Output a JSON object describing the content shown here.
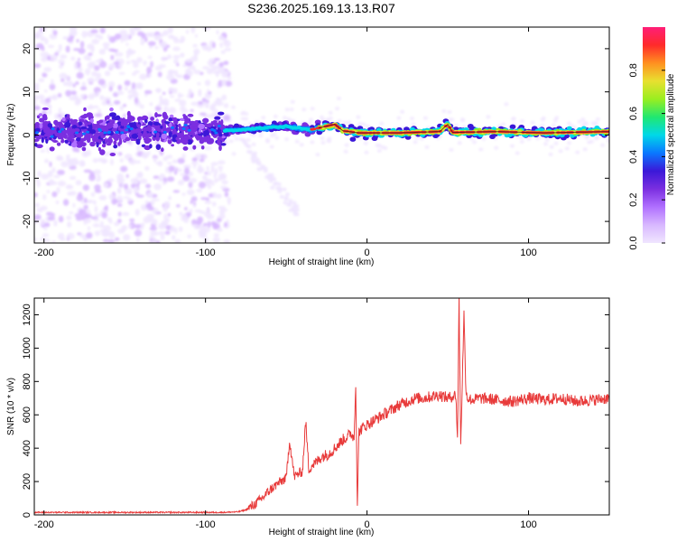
{
  "title": "S236.2025.169.13.13.R07",
  "colors": {
    "trace": "#e83a3a",
    "scatter": "#7b2fe0",
    "colormap": [
      "#f0e6ff",
      "#d8b8ff",
      "#b070ff",
      "#7b2fe0",
      "#3b18d8",
      "#0a78ff",
      "#00d8e8",
      "#20e870",
      "#9aee20",
      "#e8e030",
      "#ff9020",
      "#ff2a2a",
      "#ff1e78"
    ]
  },
  "chart_data": [
    {
      "id": "spectrogram",
      "type": "heatmap",
      "title": "S236.2025.169.13.13.R07",
      "xlabel": "Height of straight line (km)",
      "ylabel": "Frequency (Hz)",
      "xlim": [
        -206,
        150
      ],
      "ylim": [
        -25,
        25
      ],
      "xticks": [
        -200,
        -100,
        0,
        100
      ],
      "yticks": [
        -20,
        -10,
        0,
        10,
        20
      ],
      "colorbar": {
        "label": "Normalized spectral amplitude",
        "range": [
          0,
          1
        ],
        "ticks": [
          "0.0",
          "0.2",
          "0.4",
          "0.6",
          "0.8"
        ]
      },
      "regions": [
        {
          "x_range": [
            -206,
            -88
          ],
          "freq_center": 1,
          "freq_spread": 25,
          "amplitude": 0.05,
          "description_none": true
        },
        {
          "x_range": [
            -206,
            -88
          ],
          "freq_center": 1,
          "freq_spread": 5,
          "amplitude": 0.15
        },
        {
          "x_range": [
            -88,
            -30
          ],
          "freq_center": 2,
          "freq_spread": 3,
          "amplitude": 0.5
        },
        {
          "x_range": [
            -30,
            150
          ],
          "freq_center": 0.5,
          "freq_spread": 2,
          "amplitude": 0.9
        }
      ],
      "ridge": [
        [
          -88,
          1
        ],
        [
          -70,
          1.5
        ],
        [
          -50,
          2
        ],
        [
          -35,
          1.2
        ],
        [
          -20,
          2.5
        ],
        [
          -15,
          1
        ],
        [
          -5,
          0.5
        ],
        [
          20,
          0.5
        ],
        [
          45,
          0.8
        ],
        [
          50,
          2.5
        ],
        [
          53,
          0.6
        ],
        [
          80,
          0.8
        ],
        [
          110,
          0.5
        ],
        [
          150,
          0.8
        ]
      ]
    },
    {
      "id": "snr",
      "type": "line",
      "xlabel": "Height of straight line (km)",
      "ylabel": "SNR (10 * v/v)",
      "xlim": [
        -206,
        150
      ],
      "ylim": [
        0,
        1300
      ],
      "xticks": [
        -200,
        -100,
        0,
        100
      ],
      "yticks": [
        0,
        200,
        400,
        600,
        800,
        1000,
        1200
      ],
      "series": [
        {
          "x": [
            -206,
            -180,
            -150,
            -120,
            -100,
            -90,
            -80,
            -75,
            -70,
            -65,
            -60,
            -55,
            -50,
            -48,
            -45,
            -42,
            -40,
            -38,
            -36,
            -34,
            -32,
            -30,
            -28,
            -25,
            -22,
            -20,
            -18,
            -15,
            -12,
            -10,
            -8,
            -7,
            -6,
            -5,
            -3,
            0,
            5,
            10,
            15,
            20,
            25,
            30,
            35,
            40,
            45,
            50,
            55,
            56,
            57,
            58,
            59,
            60,
            61,
            62,
            65,
            70,
            80,
            90,
            100,
            110,
            120,
            130,
            140,
            150
          ],
          "y": [
            15,
            15,
            15,
            15,
            15,
            15,
            18,
            30,
            60,
            100,
            150,
            190,
            220,
            450,
            230,
            250,
            260,
            560,
            270,
            300,
            310,
            330,
            350,
            360,
            380,
            400,
            420,
            450,
            470,
            490,
            460,
            800,
            60,
            500,
            520,
            540,
            570,
            600,
            630,
            660,
            680,
            700,
            700,
            710,
            720,
            700,
            720,
            450,
            1300,
            420,
            800,
            1220,
            800,
            700,
            690,
            700,
            690,
            680,
            700,
            690,
            700,
            680,
            690,
            700
          ]
        }
      ]
    }
  ]
}
